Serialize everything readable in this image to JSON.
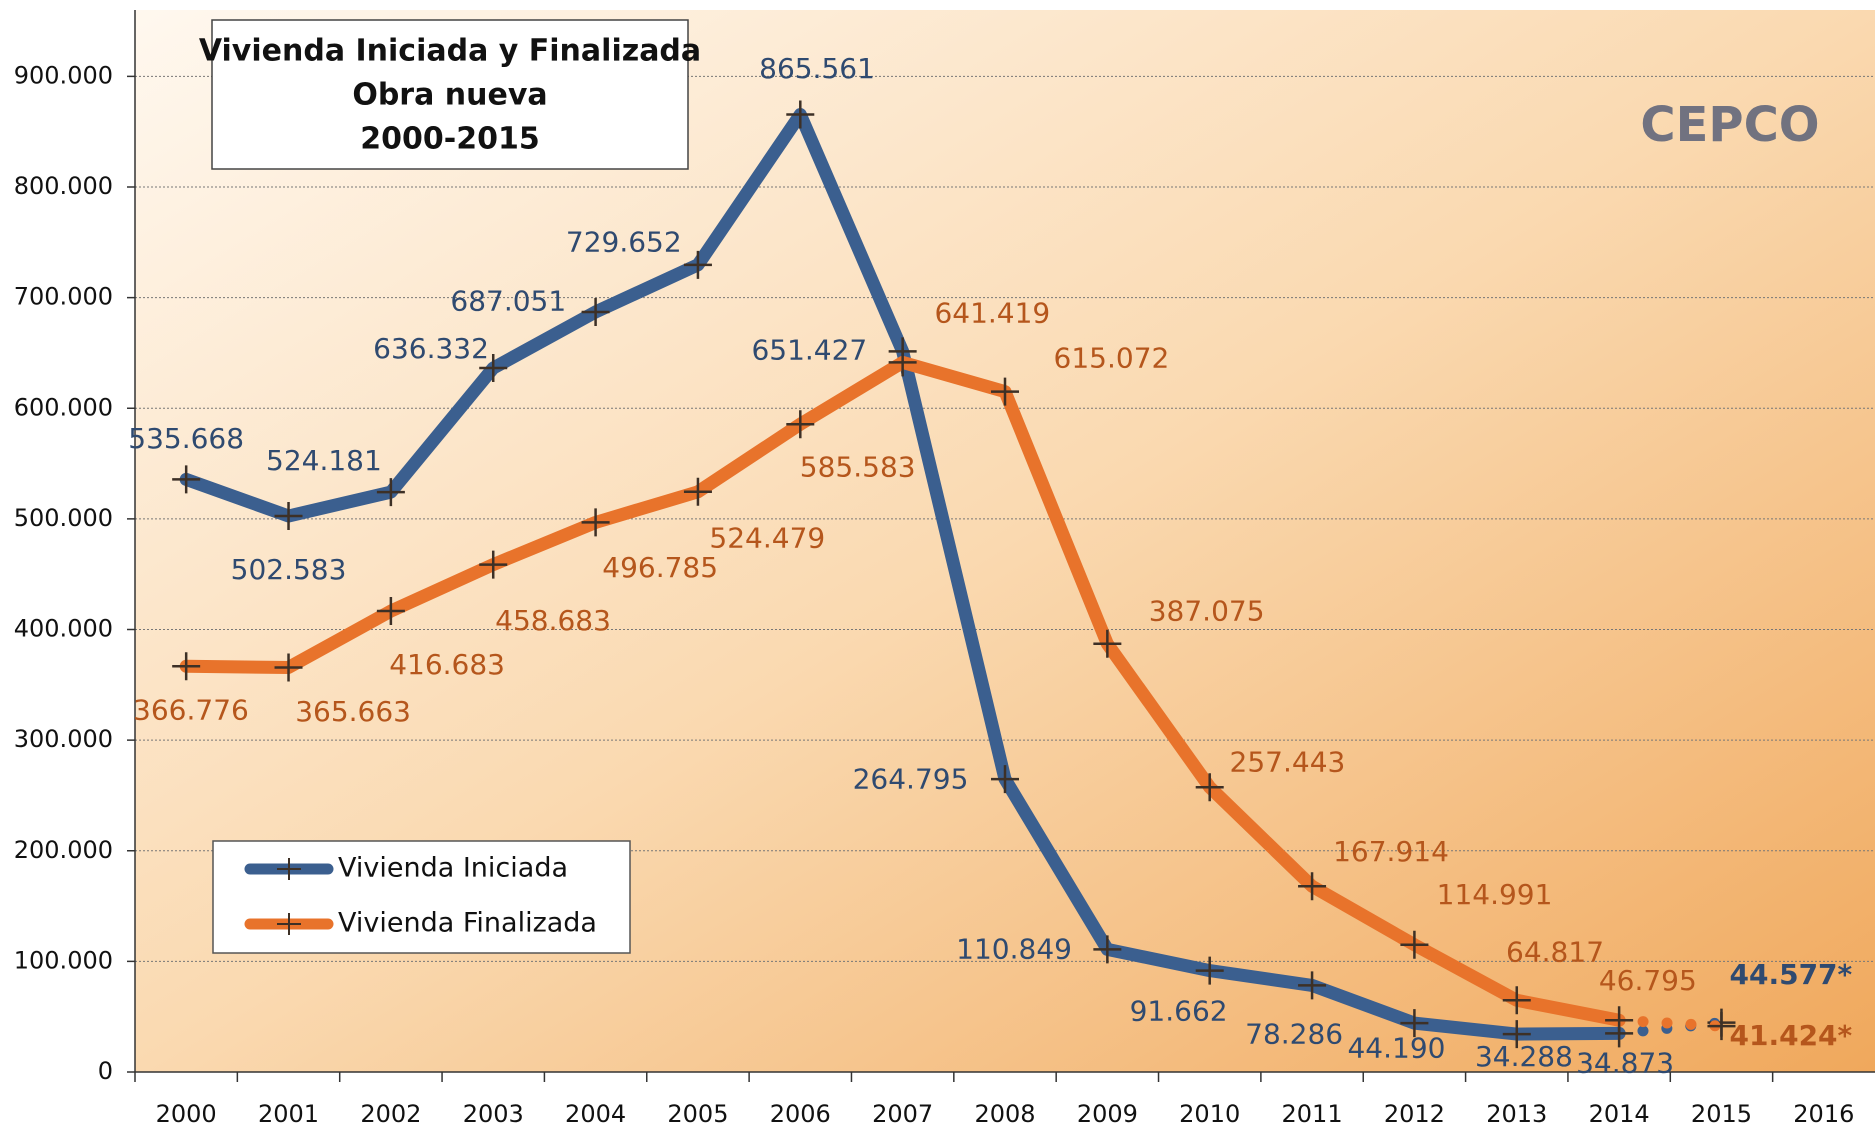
{
  "chart_data": {
    "type": "line",
    "title": [
      "Vivienda Iniciada y Finalizada",
      "Obra nueva",
      "2000-2015"
    ],
    "logo": "CEPCO",
    "categories": [
      "2000",
      "2001",
      "2002",
      "2003",
      "2004",
      "2005",
      "2006",
      "2007",
      "2008",
      "2009",
      "2010",
      "2011",
      "2012",
      "2013",
      "2014",
      "2015",
      "2016"
    ],
    "series": [
      {
        "name": "Vivienda Iniciada",
        "color": "#3b5f8f",
        "label_color": "#2f4a70",
        "values": [
          535668,
          502583,
          524181,
          636332,
          687051,
          729652,
          865561,
          651427,
          264795,
          110849,
          91662,
          78286,
          44190,
          34288,
          34873,
          44577,
          null
        ],
        "value_labels": [
          "535.668",
          "502.583",
          "524.181",
          "636.332",
          "687.051",
          "729.652",
          "865.561",
          "651.427",
          "264.795",
          "110.849",
          "91.662",
          "78.286",
          "44.190",
          "34.288",
          "34.873",
          "44.577*",
          null
        ]
      },
      {
        "name": "Vivienda Finalizada",
        "color": "#e8732b",
        "label_color": "#b5561c",
        "values": [
          366776,
          365663,
          416683,
          458683,
          496785,
          524479,
          585583,
          641419,
          615072,
          387075,
          257443,
          167914,
          114991,
          64817,
          46795,
          41424,
          null
        ],
        "value_labels": [
          "366.776",
          "365.663",
          "416.683",
          "458.683",
          "496.785",
          "524.479",
          "585.583",
          "641.419",
          "615.072",
          "387.075",
          "257.443",
          "167.914",
          "114.991",
          "64.817",
          "46.795",
          "41.424*",
          null
        ]
      }
    ],
    "dotted_last_segment": true,
    "ylim": [
      0,
      960000
    ],
    "yticks": [
      0,
      {
        "value": 100000,
        "label": "100.000"
      },
      {
        "value": 200000,
        "label": "200.000"
      },
      {
        "value": 300000,
        "label": "300.000"
      },
      {
        "value": 400000,
        "label": "400.000"
      },
      {
        "value": 500000,
        "label": "500.000"
      },
      {
        "value": 600000,
        "label": "600.000"
      },
      {
        "value": 700000,
        "label": "700.000"
      },
      {
        "value": 800000,
        "label": "800.000"
      },
      {
        "value": 900000,
        "label": "900.000"
      }
    ],
    "grid": true,
    "legend": "bottom-left"
  }
}
